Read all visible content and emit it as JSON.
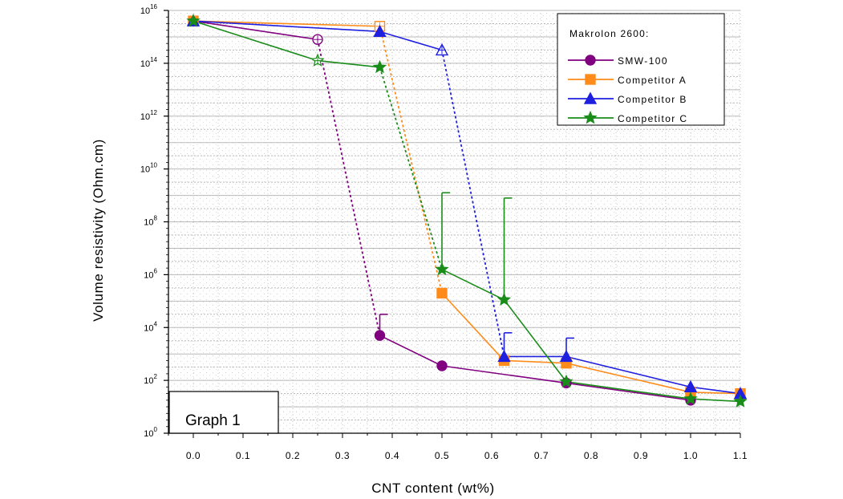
{
  "chart_data": {
    "type": "line",
    "xlabel": "CNT content (wt%)",
    "ylabel": "Volume resistivity (Ohm.cm)",
    "xlim": [
      -0.05,
      1.1
    ],
    "ylim_exp": [
      0,
      16
    ],
    "y_scale": "log10",
    "x_ticks": [
      "0.0",
      "0.1",
      "0.2",
      "0.3",
      "0.4",
      "0.5",
      "0.6",
      "0.7",
      "0.8",
      "0.9",
      "1.0",
      "1.1"
    ],
    "y_ticks": [
      {
        "base": "10",
        "exp": "0"
      },
      {
        "base": "10",
        "exp": "2"
      },
      {
        "base": "10",
        "exp": "4"
      },
      {
        "base": "10",
        "exp": "6"
      },
      {
        "base": "10",
        "exp": "8"
      },
      {
        "base": "10",
        "exp": "10"
      },
      {
        "base": "10",
        "exp": "12"
      },
      {
        "base": "10",
        "exp": "14"
      },
      {
        "base": "10",
        "exp": "16"
      }
    ],
    "grid": true,
    "legend_title": "Makrolon 2600:",
    "legend_position": "top-right",
    "annotation": "Graph 1",
    "series": [
      {
        "name": "SMW-100",
        "color": "#800080",
        "marker": "circle",
        "points": [
          {
            "x": 0.0,
            "y_exp": 15.6
          },
          {
            "x": 0.25,
            "y_exp": 14.9,
            "hollow": true
          },
          {
            "x": 0.375,
            "y_exp": 3.7,
            "err_up_exp": 4.5
          },
          {
            "x": 0.5,
            "y_exp": 2.55
          },
          {
            "x": 0.75,
            "y_exp": 1.9
          },
          {
            "x": 1.0,
            "y_exp": 1.25
          }
        ],
        "dotted_segments": [
          [
            1,
            2
          ]
        ]
      },
      {
        "name": "Competitor A",
        "color": "#ff8c1a",
        "marker": "square",
        "points": [
          {
            "x": 0.0,
            "y_exp": 15.6
          },
          {
            "x": 0.375,
            "y_exp": 15.4,
            "hollow": true
          },
          {
            "x": 0.5,
            "y_exp": 5.3
          },
          {
            "x": 0.625,
            "y_exp": 2.75
          },
          {
            "x": 0.75,
            "y_exp": 2.65
          },
          {
            "x": 1.0,
            "y_exp": 1.55
          },
          {
            "x": 1.1,
            "y_exp": 1.5
          }
        ],
        "dotted_segments": [
          [
            1,
            2
          ]
        ]
      },
      {
        "name": "Competitor B",
        "color": "#1f1fe0",
        "marker": "triangle",
        "points": [
          {
            "x": 0.0,
            "y_exp": 15.6
          },
          {
            "x": 0.375,
            "y_exp": 15.2
          },
          {
            "x": 0.5,
            "y_exp": 14.5,
            "hollow": true
          },
          {
            "x": 0.625,
            "y_exp": 2.9,
            "err_up_exp": 3.8
          },
          {
            "x": 0.75,
            "y_exp": 2.9,
            "err_up_exp": 3.6
          },
          {
            "x": 1.0,
            "y_exp": 1.75
          },
          {
            "x": 1.1,
            "y_exp": 1.5
          }
        ],
        "dotted_segments": [
          [
            2,
            3
          ]
        ]
      },
      {
        "name": "Competitor C",
        "color": "#1a8c1a",
        "marker": "star",
        "points": [
          {
            "x": 0.0,
            "y_exp": 15.6
          },
          {
            "x": 0.25,
            "y_exp": 14.1,
            "hollow": true
          },
          {
            "x": 0.375,
            "y_exp": 13.85
          },
          {
            "x": 0.5,
            "y_exp": 6.2,
            "err_up_exp": 9.1
          },
          {
            "x": 0.625,
            "y_exp": 5.05,
            "err_up_exp": 8.9
          },
          {
            "x": 0.75,
            "y_exp": 1.95
          },
          {
            "x": 1.0,
            "y_exp": 1.3
          },
          {
            "x": 1.1,
            "y_exp": 1.2
          }
        ],
        "dotted_segments": [
          [
            2,
            3
          ]
        ]
      }
    ]
  }
}
